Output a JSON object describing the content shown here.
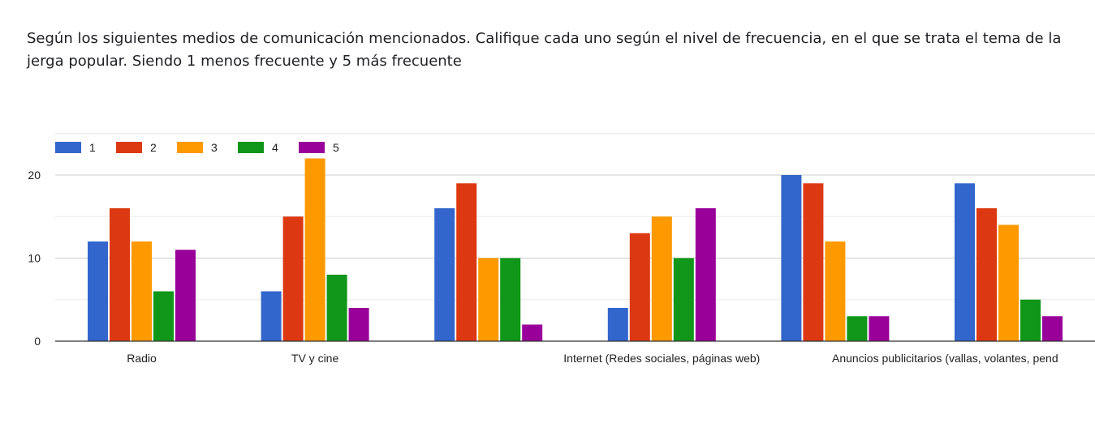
{
  "question_title": "Según los siguientes medios de comunicación mencionados. Califique cada uno según el nivel de frecuencia, en el que se trata el tema de la jerga popular. Siendo 1 menos frecuente y 5 más frecuente",
  "chart_data": {
    "type": "bar",
    "categories": [
      "Radio",
      "TV y cine",
      "",
      "Internet (Redes sociales, páginas web)",
      "",
      "Anuncios publicitarios (vallas, volantes, pend"
    ],
    "series": [
      {
        "name": "1",
        "color": "#3366cc",
        "values": [
          12,
          6,
          16,
          4,
          20,
          19
        ]
      },
      {
        "name": "2",
        "color": "#dc3912",
        "values": [
          16,
          15,
          19,
          13,
          19,
          16
        ]
      },
      {
        "name": "3",
        "color": "#ff9900",
        "values": [
          12,
          22,
          10,
          15,
          12,
          14
        ]
      },
      {
        "name": "4",
        "color": "#109618",
        "values": [
          6,
          8,
          10,
          10,
          3,
          5
        ]
      },
      {
        "name": "5",
        "color": "#990099",
        "values": [
          11,
          4,
          2,
          16,
          3,
          3
        ]
      }
    ],
    "yticks": [
      0,
      10,
      20
    ],
    "ylim": [
      0,
      25
    ],
    "grid": true,
    "legend_position": "top-left"
  }
}
